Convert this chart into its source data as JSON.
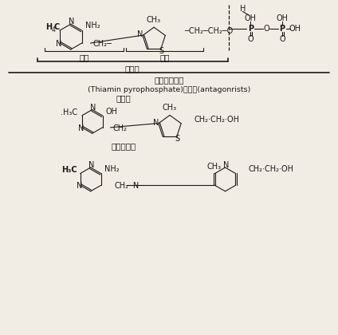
{
  "bg_color": "#f2ede4",
  "text_color": "#1a1a1a",
  "label_pyrimidine": "吡啶",
  "label_thiazole": "噻唑",
  "label_thiamine": "硫胺素",
  "label_tpp": "焦磷酸硫胺素",
  "label_tpp_en": "(Thiamin pyrophosphate)拮抗物(antagonrists)",
  "label_antagonist": "拮抗物",
  "label_oxythiamine": "羟基硫胺素"
}
